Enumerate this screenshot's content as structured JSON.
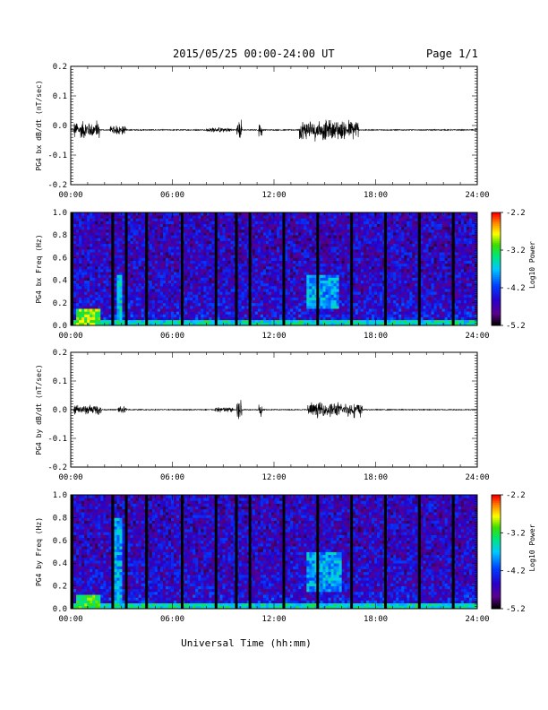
{
  "header": {
    "title": "2015/05/25  00:00-24:00 UT",
    "page": "Page 1/1"
  },
  "xlabel": "Universal Time (hh:mm)",
  "chart_data": [
    {
      "type": "line",
      "ylabel": "PG4 bx dB/dt (nT/sec)",
      "xlim": [
        0,
        24
      ],
      "ylim": [
        -0.2,
        0.2
      ],
      "xticks": [
        "00:00",
        "06:00",
        "12:00",
        "18:00",
        "24:00"
      ],
      "yticks": [
        "-0.2",
        "-0.1",
        "0.0",
        "0.1",
        "0.2"
      ],
      "baseline": -0.015,
      "series": [
        {
          "color": "#000000",
          "bursts": [
            {
              "x": [
                0.2,
                1.7
              ],
              "amp": 0.035
            },
            {
              "x": [
                2.3,
                3.3
              ],
              "amp": 0.02
            },
            {
              "x": [
                8.0,
                9.5
              ],
              "amp": 0.01
            },
            {
              "x": [
                9.8,
                10.1
              ],
              "amp": 0.04
            },
            {
              "x": [
                11.1,
                11.3
              ],
              "amp": 0.03
            },
            {
              "x": [
                13.5,
                17.0
              ],
              "amp": 0.04
            }
          ]
        }
      ]
    },
    {
      "type": "heatmap",
      "ylabel": "PG4 bx Freq (Hz)",
      "xlim": [
        0,
        24
      ],
      "ylim": [
        0.0,
        1.0
      ],
      "xticks": [
        "00:00",
        "06:00",
        "12:00",
        "18:00",
        "24:00"
      ],
      "yticks": [
        "0.0",
        "0.2",
        "0.4",
        "0.6",
        "0.8",
        "1.0"
      ],
      "colorbar": {
        "label": "Log10 Power",
        "range": [
          -5.2,
          -2.2
        ],
        "ticks": [
          "-5.2",
          "-4.2",
          "-3.2",
          "-2.2"
        ]
      },
      "gaps_hours": [
        0.0,
        2.4,
        3.2,
        4.4,
        6.5,
        8.5,
        9.7,
        10.5,
        12.5,
        14.5,
        16.5,
        18.5,
        20.5,
        22.5
      ],
      "enhancements": [
        {
          "x": [
            0.4,
            1.8
          ],
          "y": [
            0.0,
            0.15
          ],
          "level": -3.0
        },
        {
          "x": [
            2.7,
            3.0
          ],
          "y": [
            0.0,
            0.45
          ],
          "level": -3.6
        },
        {
          "x": [
            13.9,
            15.8
          ],
          "y": [
            0.15,
            0.45
          ],
          "level": -3.8
        },
        {
          "x": [
            0.0,
            24.0
          ],
          "y": [
            0.0,
            0.04
          ],
          "level": -3.5
        }
      ]
    },
    {
      "type": "line",
      "ylabel": "PG4 by dB/dt (nT/sec)",
      "xlim": [
        0,
        24
      ],
      "ylim": [
        -0.2,
        0.2
      ],
      "xticks": [
        "00:00",
        "06:00",
        "12:00",
        "18:00",
        "24:00"
      ],
      "yticks": [
        "-0.2",
        "-0.1",
        "0.0",
        "0.1",
        "0.2"
      ],
      "baseline": 0.0,
      "series": [
        {
          "color": "#000000",
          "bursts": [
            {
              "x": [
                0.2,
                1.8
              ],
              "amp": 0.02
            },
            {
              "x": [
                2.8,
                3.3
              ],
              "amp": 0.015
            },
            {
              "x": [
                8.5,
                9.6
              ],
              "amp": 0.012
            },
            {
              "x": [
                9.8,
                10.1
              ],
              "amp": 0.045
            },
            {
              "x": [
                11.1,
                11.3
              ],
              "amp": 0.03
            },
            {
              "x": [
                14.0,
                17.2
              ],
              "amp": 0.03
            }
          ]
        }
      ]
    },
    {
      "type": "heatmap",
      "ylabel": "PG4 by Freq (Hz)",
      "xlim": [
        0,
        24
      ],
      "ylim": [
        0.0,
        1.0
      ],
      "xticks": [
        "00:00",
        "06:00",
        "12:00",
        "18:00",
        "24:00"
      ],
      "yticks": [
        "0.0",
        "0.2",
        "0.4",
        "0.6",
        "0.8",
        "1.0"
      ],
      "colorbar": {
        "label": "Log10 Power",
        "range": [
          -5.2,
          -2.2
        ],
        "ticks": [
          "-5.2",
          "-4.2",
          "-3.2",
          "-2.2"
        ]
      },
      "gaps_hours": [
        0.0,
        2.4,
        3.2,
        4.4,
        6.5,
        8.5,
        9.7,
        10.5,
        12.5,
        14.5,
        16.5,
        18.5,
        20.5,
        22.5
      ],
      "enhancements": [
        {
          "x": [
            0.4,
            1.8
          ],
          "y": [
            0.0,
            0.12
          ],
          "level": -3.2
        },
        {
          "x": [
            2.6,
            3.0
          ],
          "y": [
            0.0,
            0.8
          ],
          "level": -3.8
        },
        {
          "x": [
            14.0,
            16.0
          ],
          "y": [
            0.15,
            0.5
          ],
          "level": -3.8
        },
        {
          "x": [
            0.0,
            24.0
          ],
          "y": [
            0.0,
            0.04
          ],
          "level": -3.5
        }
      ]
    }
  ]
}
